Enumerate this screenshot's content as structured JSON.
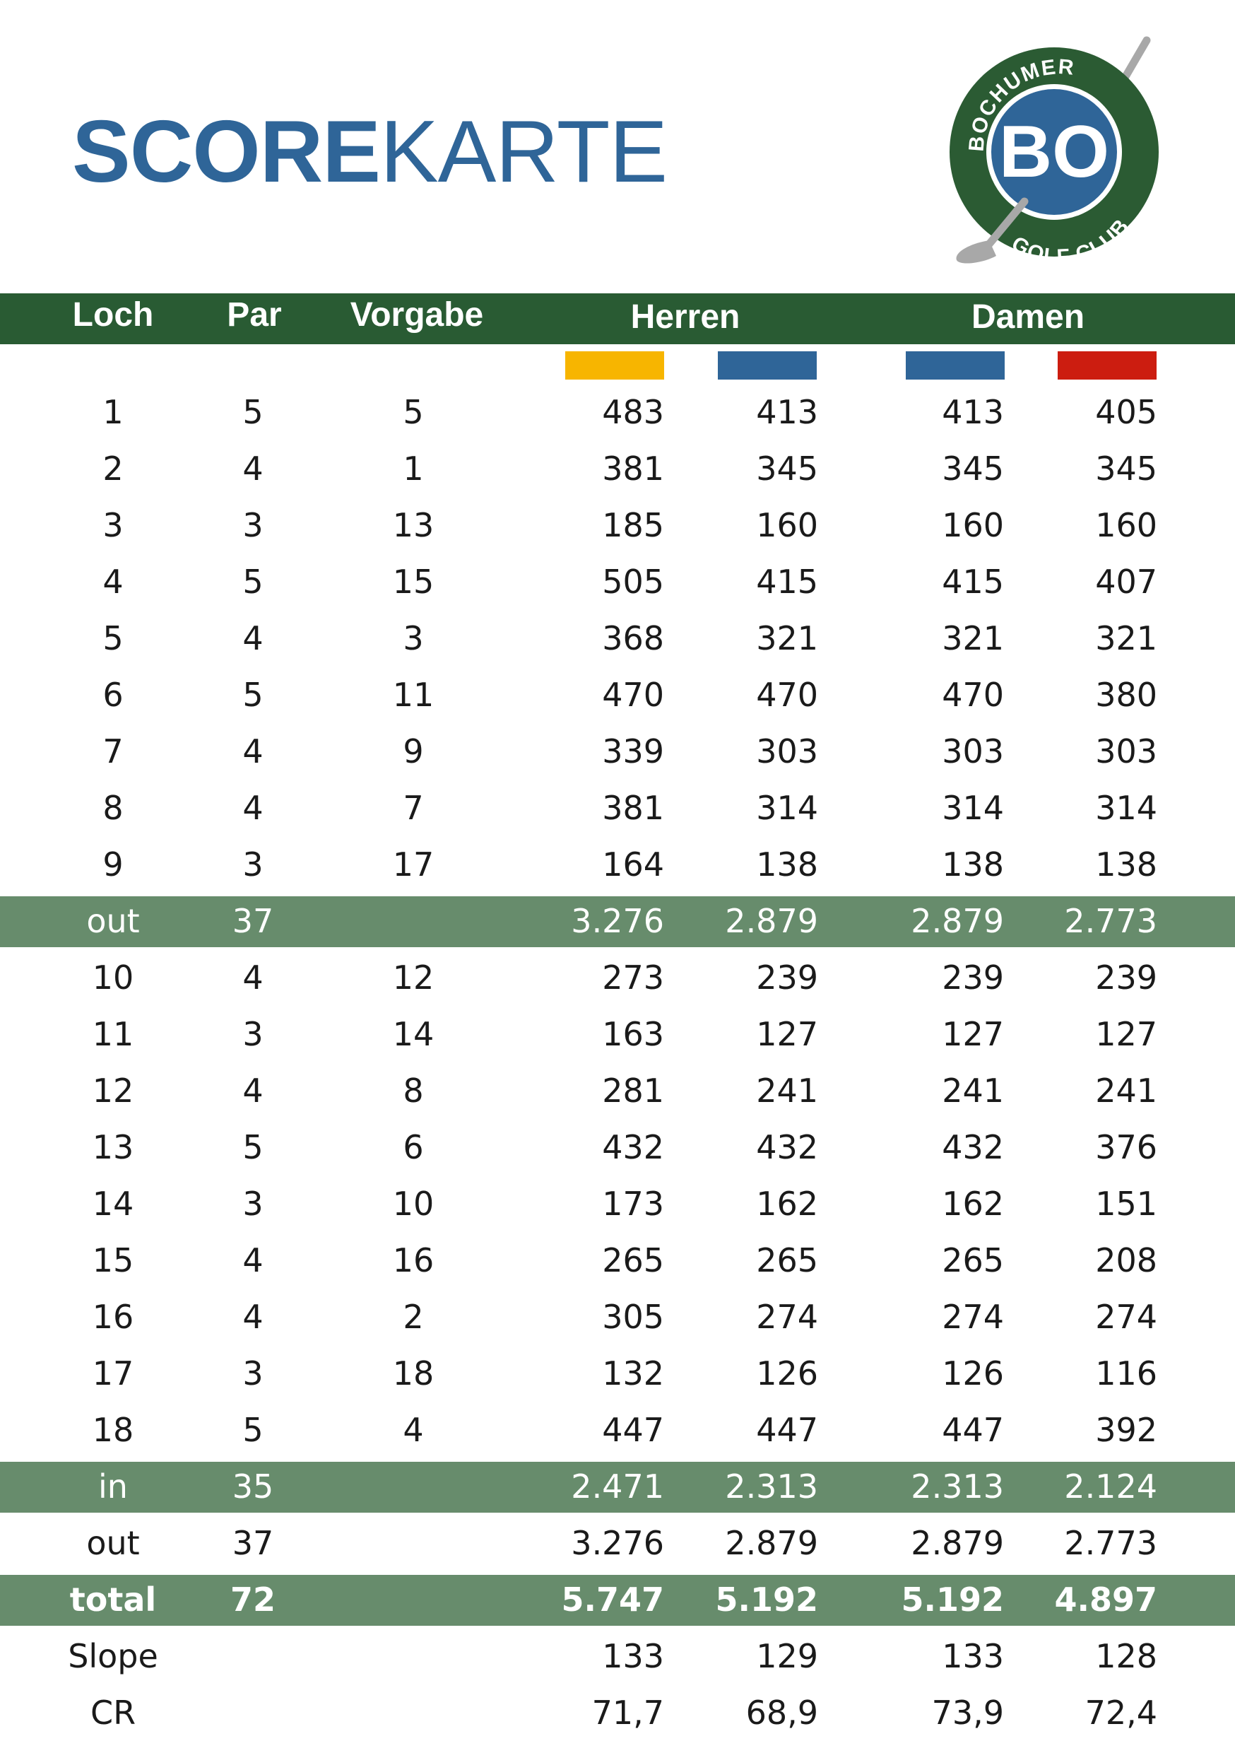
{
  "title": {
    "bold": "SCORE",
    "regular": "KARTE"
  },
  "logo": {
    "monogram": "BO",
    "top_text": "BOCHUMER",
    "bottom_text": "GOLF CLUB",
    "ring_color": "#2b5b33",
    "center_color": "#2f6598"
  },
  "header": {
    "loch": "Loch",
    "par": "Par",
    "vorgabe": "Vorgabe",
    "herren": "Herren",
    "damen": "Damen"
  },
  "tees": [
    {
      "group": "Herren",
      "color": "#f7b500"
    },
    {
      "group": "Herren",
      "color": "#2f6598"
    },
    {
      "group": "Damen",
      "color": "#2f6598"
    },
    {
      "group": "Damen",
      "color": "#cc1d10"
    }
  ],
  "front_nine": [
    {
      "loch": "1",
      "par": "5",
      "vorgabe": "5",
      "d": [
        "483",
        "413",
        "413",
        "405"
      ]
    },
    {
      "loch": "2",
      "par": "4",
      "vorgabe": "1",
      "d": [
        "381",
        "345",
        "345",
        "345"
      ]
    },
    {
      "loch": "3",
      "par": "3",
      "vorgabe": "13",
      "d": [
        "185",
        "160",
        "160",
        "160"
      ]
    },
    {
      "loch": "4",
      "par": "5",
      "vorgabe": "15",
      "d": [
        "505",
        "415",
        "415",
        "407"
      ]
    },
    {
      "loch": "5",
      "par": "4",
      "vorgabe": "3",
      "d": [
        "368",
        "321",
        "321",
        "321"
      ]
    },
    {
      "loch": "6",
      "par": "5",
      "vorgabe": "11",
      "d": [
        "470",
        "470",
        "470",
        "380"
      ]
    },
    {
      "loch": "7",
      "par": "4",
      "vorgabe": "9",
      "d": [
        "339",
        "303",
        "303",
        "303"
      ]
    },
    {
      "loch": "8",
      "par": "4",
      "vorgabe": "7",
      "d": [
        "381",
        "314",
        "314",
        "314"
      ]
    },
    {
      "loch": "9",
      "par": "3",
      "vorgabe": "17",
      "d": [
        "164",
        "138",
        "138",
        "138"
      ]
    }
  ],
  "out_row": {
    "label": "out",
    "par": "37",
    "d": [
      "3.276",
      "2.879",
      "2.879",
      "2.773"
    ]
  },
  "back_nine": [
    {
      "loch": "10",
      "par": "4",
      "vorgabe": "12",
      "d": [
        "273",
        "239",
        "239",
        "239"
      ]
    },
    {
      "loch": "11",
      "par": "3",
      "vorgabe": "14",
      "d": [
        "163",
        "127",
        "127",
        "127"
      ]
    },
    {
      "loch": "12",
      "par": "4",
      "vorgabe": "8",
      "d": [
        "281",
        "241",
        "241",
        "241"
      ]
    },
    {
      "loch": "13",
      "par": "5",
      "vorgabe": "6",
      "d": [
        "432",
        "432",
        "432",
        "376"
      ]
    },
    {
      "loch": "14",
      "par": "3",
      "vorgabe": "10",
      "d": [
        "173",
        "162",
        "162",
        "151"
      ]
    },
    {
      "loch": "15",
      "par": "4",
      "vorgabe": "16",
      "d": [
        "265",
        "265",
        "265",
        "208"
      ]
    },
    {
      "loch": "16",
      "par": "4",
      "vorgabe": "2",
      "d": [
        "305",
        "274",
        "274",
        "274"
      ]
    },
    {
      "loch": "17",
      "par": "3",
      "vorgabe": "18",
      "d": [
        "132",
        "126",
        "126",
        "116"
      ]
    },
    {
      "loch": "18",
      "par": "5",
      "vorgabe": "4",
      "d": [
        "447",
        "447",
        "447",
        "392"
      ]
    }
  ],
  "in_row": {
    "label": "in",
    "par": "35",
    "d": [
      "2.471",
      "2.313",
      "2.313",
      "2.124"
    ]
  },
  "out_repeat_row": {
    "label": "out",
    "par": "37",
    "d": [
      "3.276",
      "2.879",
      "2.879",
      "2.773"
    ]
  },
  "total_row": {
    "label": "total",
    "par": "72",
    "d": [
      "5.747",
      "5.192",
      "5.192",
      "4.897"
    ]
  },
  "slope_row": {
    "label": "Slope",
    "d": [
      "133",
      "129",
      "133",
      "128"
    ]
  },
  "cr_row": {
    "label": "CR",
    "d": [
      "71,7",
      "68,9",
      "73,9",
      "72,4"
    ]
  }
}
